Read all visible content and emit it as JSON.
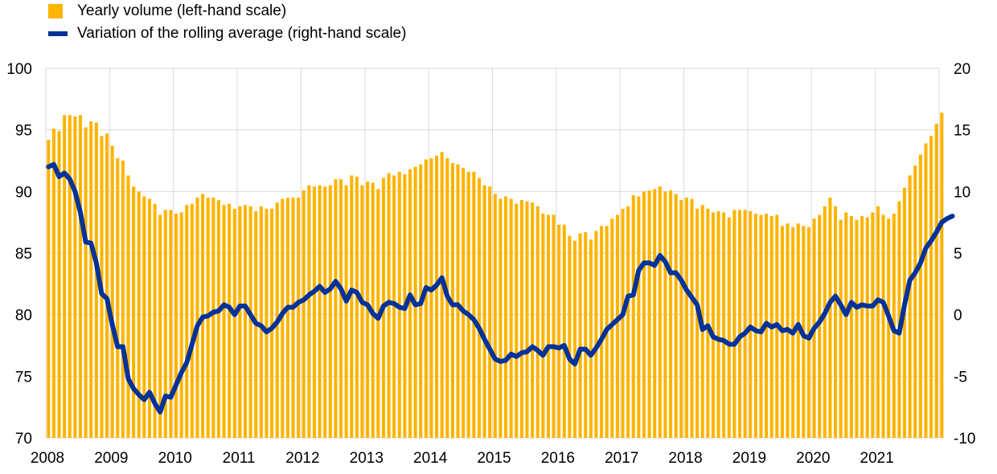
{
  "legend": {
    "bar_label": "Yearly volume (left-hand scale)",
    "line_label": "Variation of the rolling average (right-hand scale)"
  },
  "colors": {
    "bar": "#FFB400",
    "line": "#003299",
    "grid": "#D9D9D9"
  },
  "chart_data": {
    "type": "bar+line",
    "title": "",
    "x_tick_labels": [
      "2008",
      "2009",
      "2010",
      "2011",
      "2012",
      "2013",
      "2014",
      "2015",
      "2016",
      "2017",
      "2018",
      "2019",
      "2020",
      "2021"
    ],
    "left_axis": {
      "ylim": [
        70,
        100
      ],
      "ticks": [
        "100",
        "95",
        "90",
        "85",
        "80",
        "75",
        "70"
      ]
    },
    "right_axis": {
      "ylim": [
        -10,
        20
      ],
      "ticks": [
        "20",
        "15",
        "10",
        "5",
        "0",
        "-5",
        "-10"
      ]
    },
    "grid": true,
    "legend_position": "top-left",
    "months_start": "2008-01",
    "series": [
      {
        "name": "Yearly volume (left-hand scale)",
        "type": "bar",
        "axis": "left",
        "values": [
          94.2,
          95.1,
          94.9,
          96.2,
          96.2,
          96.1,
          96.2,
          95.2,
          95.7,
          95.6,
          94.5,
          94.7,
          93.7,
          92.7,
          92.5,
          91.3,
          90.4,
          90.0,
          89.6,
          89.4,
          89.0,
          88.1,
          88.5,
          88.5,
          88.2,
          88.3,
          88.9,
          89.0,
          89.5,
          89.8,
          89.5,
          89.5,
          89.3,
          88.9,
          89.0,
          88.6,
          88.8,
          88.9,
          88.8,
          88.4,
          88.8,
          88.6,
          88.6,
          89.1,
          89.4,
          89.5,
          89.5,
          89.5,
          90.1,
          90.5,
          90.4,
          90.5,
          90.4,
          90.5,
          91.0,
          91.0,
          90.5,
          91.3,
          91.2,
          90.5,
          90.8,
          90.7,
          90.2,
          91.1,
          91.5,
          91.3,
          91.6,
          91.4,
          91.8,
          92.0,
          92.2,
          92.6,
          92.7,
          92.9,
          93.2,
          92.7,
          92.3,
          92.2,
          91.9,
          91.6,
          91.6,
          91.1,
          90.5,
          90.4,
          89.8,
          89.4,
          89.6,
          89.4,
          89.0,
          89.3,
          89.2,
          89.1,
          88.8,
          88.2,
          88.1,
          88.1,
          87.3,
          87.3,
          86.4,
          86.0,
          86.6,
          86.7,
          86.1,
          86.8,
          87.2,
          87.2,
          87.8,
          88.1,
          88.6,
          88.8,
          89.7,
          89.6,
          90.0,
          90.1,
          90.2,
          90.4,
          90.0,
          90.1,
          89.8,
          89.3,
          89.5,
          89.4,
          88.6,
          88.9,
          88.6,
          88.3,
          88.4,
          88.3,
          87.9,
          88.5,
          88.5,
          88.5,
          88.4,
          88.2,
          88.1,
          88.2,
          88.0,
          88.1,
          87.2,
          87.4,
          87.1,
          87.4,
          87.2,
          87.1,
          87.8,
          88.1,
          88.8,
          89.5,
          88.8,
          87.7,
          88.3,
          88.0,
          87.7,
          88.0,
          87.9,
          88.3,
          88.8,
          88.1,
          87.8,
          88.2,
          89.2,
          90.3,
          91.3,
          92.1,
          93.0,
          93.9,
          94.5,
          95.5,
          96.4
        ]
      },
      {
        "name": "Variation of the rolling average (right-hand scale)",
        "type": "line",
        "axis": "right",
        "values": [
          12.0,
          12.2,
          11.2,
          11.5,
          11.0,
          10.0,
          8.3,
          5.9,
          5.8,
          4.2,
          1.7,
          1.3,
          -0.8,
          -2.6,
          -2.6,
          -5.2,
          -6.0,
          -6.5,
          -6.9,
          -6.3,
          -7.2,
          -7.9,
          -6.6,
          -6.7,
          -5.7,
          -4.7,
          -3.9,
          -2.4,
          -0.9,
          -0.2,
          -0.1,
          0.2,
          0.3,
          0.8,
          0.6,
          0.0,
          0.7,
          0.7,
          0.0,
          -0.7,
          -0.9,
          -1.4,
          -1.1,
          -0.6,
          0.1,
          0.6,
          0.6,
          1.0,
          1.2,
          1.6,
          1.9,
          2.3,
          1.8,
          2.1,
          2.7,
          2.1,
          1.1,
          2.0,
          1.8,
          1.0,
          0.8,
          0.1,
          -0.3,
          0.7,
          1.0,
          0.9,
          0.6,
          0.5,
          1.6,
          0.8,
          0.9,
          2.2,
          2.0,
          2.4,
          3.0,
          1.5,
          0.8,
          0.8,
          0.3,
          0.0,
          -0.4,
          -1.1,
          -2.0,
          -2.8,
          -3.6,
          -3.8,
          -3.7,
          -3.2,
          -3.4,
          -3.1,
          -3.0,
          -2.6,
          -2.9,
          -3.3,
          -2.6,
          -2.6,
          -2.7,
          -2.5,
          -3.6,
          -4.0,
          -2.8,
          -2.8,
          -3.3,
          -2.7,
          -2.0,
          -1.2,
          -0.8,
          -0.4,
          0.0,
          1.5,
          1.6,
          3.6,
          4.2,
          4.2,
          4.0,
          4.8,
          4.3,
          3.4,
          3.4,
          2.8,
          2.0,
          1.4,
          0.8,
          -1.2,
          -0.9,
          -1.8,
          -2.0,
          -2.1,
          -2.4,
          -2.4,
          -1.8,
          -1.5,
          -1.0,
          -1.3,
          -1.4,
          -0.7,
          -1.0,
          -0.8,
          -1.3,
          -1.2,
          -1.5,
          -0.8,
          -1.7,
          -1.9,
          -1.1,
          -0.6,
          0.1,
          1.0,
          1.5,
          0.8,
          0.0,
          1.0,
          0.6,
          0.8,
          0.7,
          0.7,
          1.2,
          1.0,
          -0.1,
          -1.3,
          -1.5,
          0.8,
          2.8,
          3.4,
          4.2,
          5.4,
          6.0,
          6.7,
          7.5,
          7.8,
          8.0
        ]
      }
    ]
  }
}
